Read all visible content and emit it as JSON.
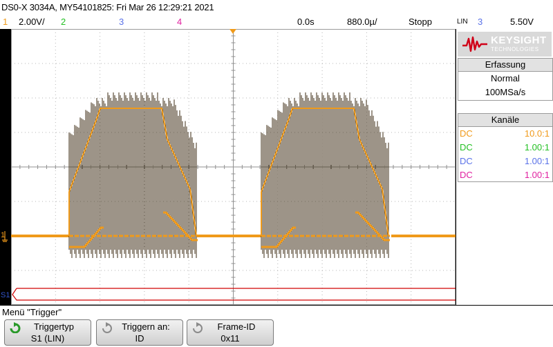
{
  "header": {
    "title": "DS0-X 3034A, MY54101825: Fri Mar 26 12:29:21 2021"
  },
  "channels_bar": {
    "ch1_num": "1",
    "ch1_scale": "2.00V/",
    "ch2_num": "2",
    "ch3_num": "3",
    "ch4_num": "4",
    "time_offset": "0.0s",
    "time_scale": "880.0µ/",
    "run_state": "Stopp",
    "trigger_mode": "LIN",
    "trigger_source": "3",
    "trigger_level": "5.50V"
  },
  "colors": {
    "ch1": "#f09a1a",
    "ch2": "#23c023",
    "ch3": "#5a72e8",
    "ch4": "#e020a0",
    "serial": "#d00000"
  },
  "screen": {
    "ground_marker_label": "1",
    "serial_marker_label": "S1"
  },
  "side_panel": {
    "logo_main": "KEYSIGHT",
    "logo_sub": "TECHNOLOGIES",
    "acquisition": {
      "header": "Erfassung",
      "mode": "Normal",
      "rate": "100MSa/s"
    },
    "channels": {
      "header": "Kanäle",
      "rows": [
        {
          "coupling": "DC",
          "probe": "10.0:1"
        },
        {
          "coupling": "DC",
          "probe": "1.00:1"
        },
        {
          "coupling": "DC",
          "probe": "1.00:1"
        },
        {
          "coupling": "DC",
          "probe": "1.00:1"
        }
      ]
    }
  },
  "menu": {
    "title": "Menü \"Trigger\"",
    "softkeys": [
      {
        "label": "Triggertyp",
        "value": "S1 (LIN)",
        "icon": "rotate-knob-icon"
      },
      {
        "label": "Triggern an:",
        "value": "ID",
        "icon": "rotate-knob-icon"
      },
      {
        "label": "Frame-ID",
        "value": "0x11",
        "icon": "rotate-knob-icon"
      }
    ]
  }
}
